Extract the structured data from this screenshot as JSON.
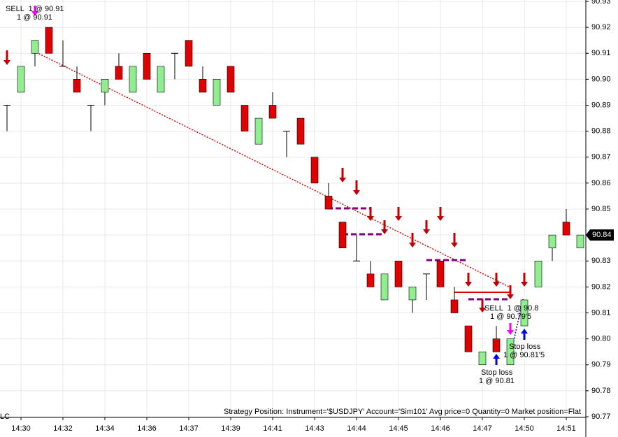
{
  "chart_data": {
    "type": "candlestick",
    "categories": [
      null,
      "14:30",
      null,
      null,
      "14:32",
      null,
      null,
      "14:34",
      null,
      null,
      "14:36",
      null,
      null,
      "14:37",
      null,
      null,
      "14:39",
      null,
      null,
      "14:41",
      null,
      null,
      "14:43",
      null,
      null,
      "14:44",
      null,
      null,
      "14:45",
      null,
      null,
      "14:46",
      null,
      null,
      "14:47",
      null,
      null,
      "14:50",
      null,
      null,
      "14:51",
      null
    ],
    "open": [
      90.89,
      90.895,
      90.91,
      90.92,
      90.905,
      90.9,
      90.89,
      90.895,
      90.905,
      90.895,
      90.91,
      90.895,
      90.91,
      90.915,
      90.9,
      90.89,
      90.905,
      90.89,
      90.875,
      90.89,
      90.88,
      90.885,
      90.87,
      90.855,
      90.845,
      90.83,
      90.825,
      90.815,
      90.83,
      90.815,
      90.825,
      90.83,
      90.815,
      90.805,
      90.79,
      90.8,
      90.79,
      90.805,
      90.82,
      90.835,
      90.845,
      90.835
    ],
    "high": [
      90.89,
      90.905,
      90.915,
      90.92,
      90.915,
      90.905,
      90.89,
      90.9,
      90.91,
      90.905,
      90.91,
      90.905,
      90.91,
      90.915,
      90.905,
      90.9,
      90.905,
      90.89,
      90.885,
      90.895,
      90.88,
      90.885,
      90.87,
      90.86,
      90.845,
      90.84,
      90.83,
      90.825,
      90.83,
      90.82,
      90.825,
      90.83,
      90.82,
      90.805,
      90.795,
      90.805,
      90.8,
      90.815,
      90.83,
      90.84,
      90.85,
      90.84
    ],
    "low": [
      90.88,
      90.895,
      90.905,
      90.91,
      90.905,
      90.895,
      90.88,
      90.89,
      90.9,
      90.895,
      90.9,
      90.895,
      90.9,
      90.905,
      90.895,
      90.89,
      90.895,
      90.88,
      90.875,
      90.885,
      90.87,
      90.875,
      90.86,
      90.85,
      90.835,
      90.83,
      90.82,
      90.815,
      90.82,
      90.81,
      90.815,
      90.82,
      90.81,
      90.795,
      90.79,
      90.795,
      90.79,
      90.805,
      90.82,
      90.83,
      90.84,
      90.835
    ],
    "close": [
      90.89,
      90.905,
      90.915,
      90.91,
      90.905,
      90.895,
      90.89,
      90.9,
      90.9,
      90.905,
      90.9,
      90.905,
      90.91,
      90.905,
      90.895,
      90.9,
      90.895,
      90.88,
      90.885,
      90.885,
      90.88,
      90.875,
      90.86,
      90.85,
      90.835,
      90.83,
      90.82,
      90.825,
      90.82,
      90.82,
      90.825,
      90.82,
      90.81,
      90.795,
      90.795,
      90.795,
      90.8,
      90.815,
      90.83,
      90.84,
      90.84,
      90.84
    ],
    "up_color": "#90ee90",
    "down_color": "#e00000",
    "ylim": [
      90.77,
      90.93
    ],
    "yticks": [
      90.77,
      90.78,
      90.79,
      {
        "value": 90.8,
        "label": "90.80"
      },
      90.81,
      90.82,
      90.83,
      90.84,
      90.85,
      90.86,
      90.87,
      90.88,
      90.89,
      {
        "value": 90.9,
        "label": "90.90"
      },
      90.91,
      90.92,
      90.93
    ],
    "last_price": 90.84,
    "grid": true,
    "annotations": [
      "SELL  1 @ 90.91",
      "1 @ 90.91",
      "SELL  1 @ 90.8",
      "1 @ 90.79'5",
      "Stop loss",
      "1 @ 90.81'5",
      "Stop loss",
      "1 @ 90.81"
    ],
    "status_text": "Strategy Position: Instrument='$USDJPY' Account='Sim101' Avg price=0 Quantity=0 Market position=Flat",
    "corner_label": "LC"
  }
}
